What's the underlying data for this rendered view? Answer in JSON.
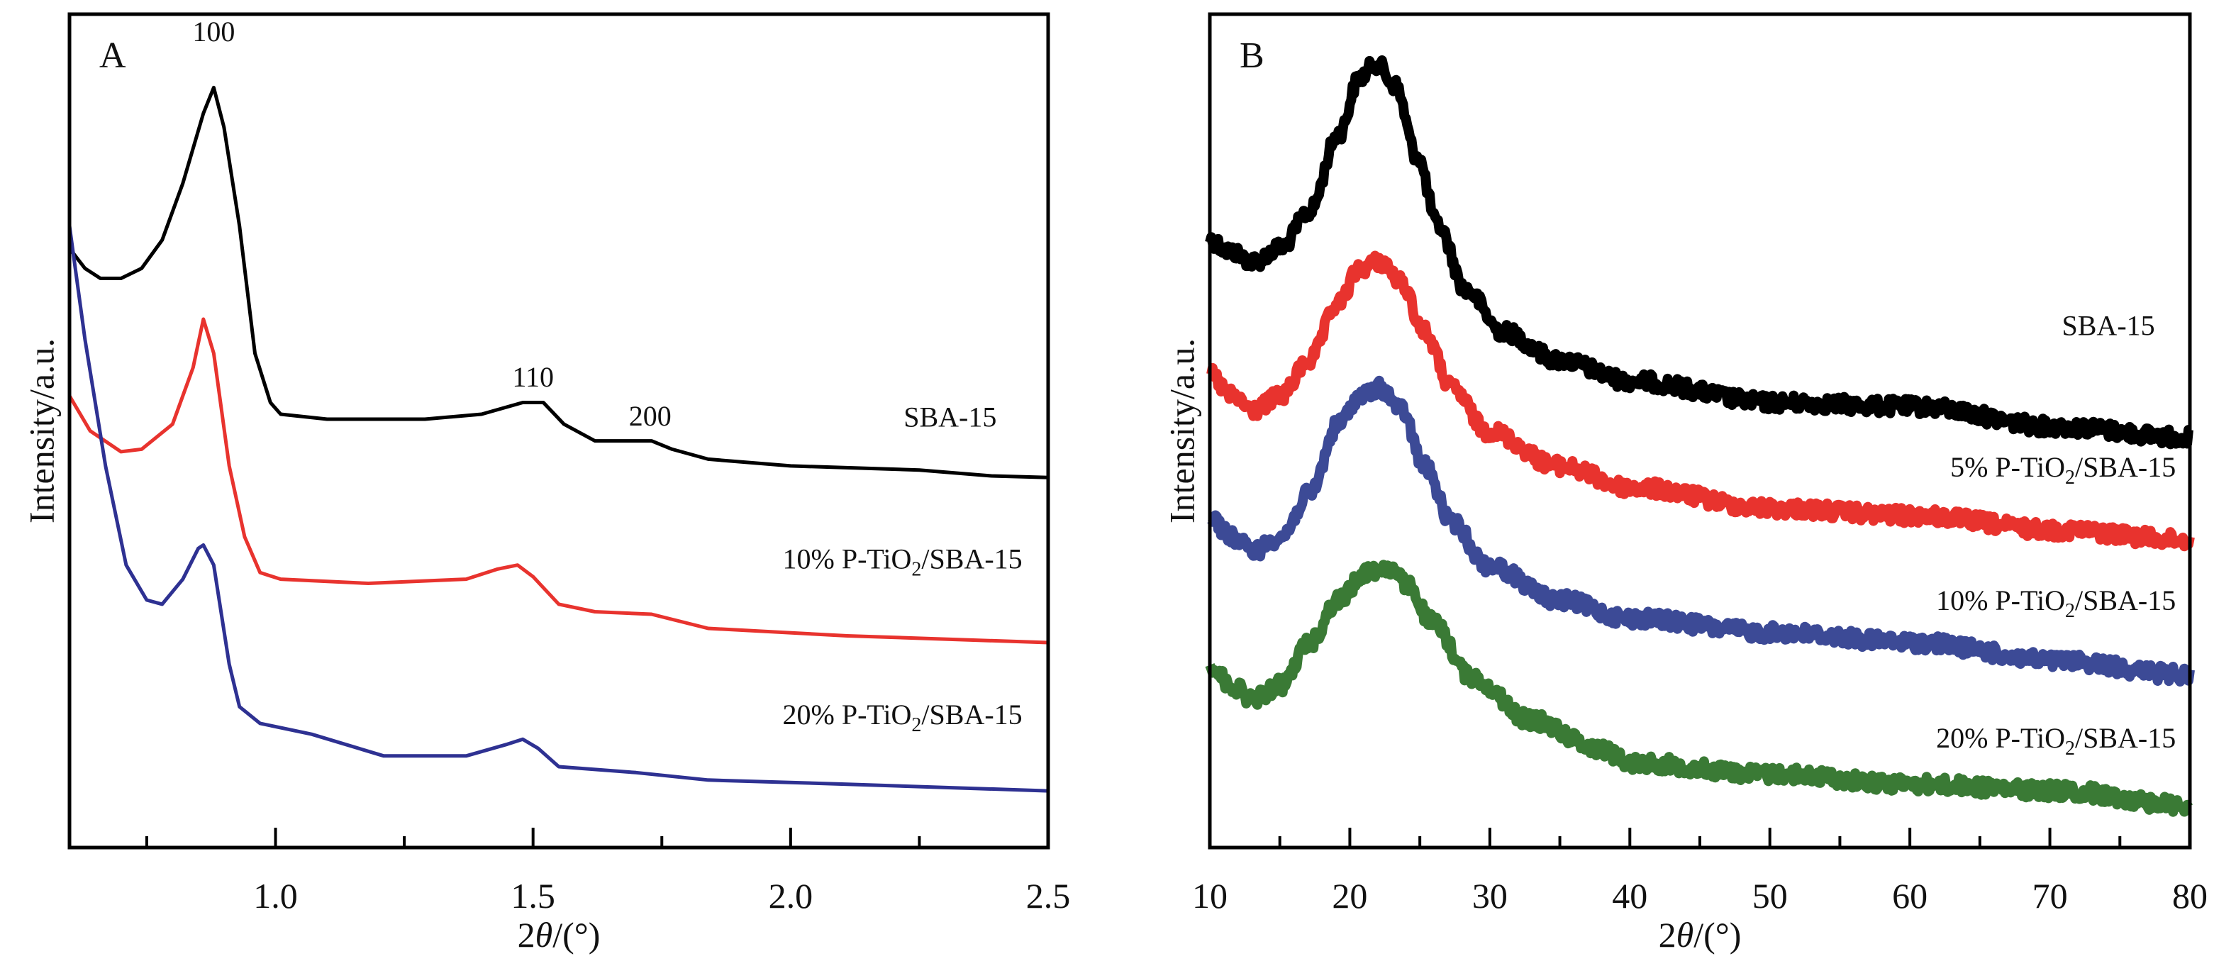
{
  "chart_data": [
    {
      "type": "line",
      "panel": "A",
      "panel_label": "A",
      "title": "",
      "xlabel": "2θ/(°)",
      "xlabel_parts": {
        "prefix": "2",
        "theta": "θ",
        "suffix": "/(°)"
      },
      "ylabel": "Intensity/a.u.",
      "xlim": [
        0.6,
        2.5
      ],
      "ylim": [
        0,
        100
      ],
      "xticks_major": [
        1.0,
        1.5,
        2.0,
        2.5
      ],
      "xtick_labels": [
        "1.0",
        "1.5",
        "2.0",
        "2.5"
      ],
      "xticks_minor": [
        0.75,
        1.25,
        1.75,
        2.25
      ],
      "grid": false,
      "legend": "inline labels at right end of each curve",
      "peak_annotations": [
        {
          "text": "100",
          "x": 0.88
        },
        {
          "text": "110",
          "x": 1.5
        },
        {
          "text": "200",
          "x": 1.73
        }
      ],
      "series": [
        {
          "name": "SBA-15",
          "label_main": "SBA-15",
          "label_sub": "",
          "label_tail": "",
          "color": "#000000",
          "x": [
            0.6,
            0.63,
            0.66,
            0.7,
            0.74,
            0.78,
            0.82,
            0.86,
            0.88,
            0.9,
            0.93,
            0.96,
            0.99,
            1.01,
            1.1,
            1.29,
            1.4,
            1.48,
            1.52,
            1.56,
            1.62,
            1.67,
            1.73,
            1.77,
            1.84,
            2.0,
            2.25,
            2.39,
            2.5
          ],
          "y": [
            71.9,
            69.5,
            68.3,
            68.3,
            69.5,
            72.9,
            79.7,
            88.1,
            91.2,
            86.4,
            74.6,
            59.3,
            53.4,
            52.0,
            51.4,
            51.4,
            52.0,
            53.4,
            53.4,
            50.8,
            48.8,
            48.8,
            48.8,
            47.8,
            46.6,
            45.8,
            45.3,
            44.6,
            44.4
          ]
        },
        {
          "name": "10% P-TiO2/SBA-15",
          "label_main": "10% P-TiO",
          "label_sub": "2",
          "label_tail": "/SBA-15",
          "color": "#e8332e",
          "x": [
            0.6,
            0.64,
            0.7,
            0.74,
            0.8,
            0.84,
            0.86,
            0.88,
            0.91,
            0.94,
            0.97,
            1.01,
            1.18,
            1.37,
            1.43,
            1.47,
            1.5,
            1.55,
            1.62,
            1.73,
            1.84,
            2.11,
            2.5
          ],
          "y": [
            54.2,
            50.0,
            47.5,
            47.8,
            50.8,
            57.6,
            63.4,
            59.3,
            45.8,
            37.3,
            33.0,
            32.2,
            31.7,
            32.2,
            33.4,
            33.9,
            32.5,
            29.2,
            28.3,
            28.0,
            26.3,
            25.4,
            24.6
          ]
        },
        {
          "name": "20% P-TiO2/SBA-15",
          "label_main": "20% P-TiO",
          "label_sub": "2",
          "label_tail": "/SBA-15",
          "color": "#2e3192",
          "x": [
            0.6,
            0.63,
            0.67,
            0.71,
            0.75,
            0.78,
            0.82,
            0.85,
            0.86,
            0.88,
            0.91,
            0.93,
            0.97,
            1.07,
            1.21,
            1.37,
            1.45,
            1.48,
            1.51,
            1.55,
            1.7,
            1.84,
            2.11,
            2.5
          ],
          "y": [
            74.6,
            61.0,
            45.8,
            33.9,
            29.7,
            29.2,
            32.2,
            35.9,
            36.3,
            33.9,
            22.0,
            16.9,
            14.9,
            13.6,
            11.0,
            11.0,
            12.4,
            13.0,
            11.9,
            9.7,
            9.0,
            8.1,
            7.6,
            6.8
          ]
        }
      ]
    },
    {
      "type": "line",
      "panel": "B",
      "panel_label": "B",
      "title": "",
      "xlabel": "2θ/(°)",
      "xlabel_parts": {
        "prefix": "2",
        "theta": "θ",
        "suffix": "/(°)"
      },
      "ylabel": "Intensity/a.u.",
      "xlim": [
        10,
        80
      ],
      "ylim": [
        0,
        100
      ],
      "xticks_major": [
        10,
        20,
        30,
        40,
        50,
        60,
        70,
        80
      ],
      "xtick_labels": [
        "10",
        "20",
        "30",
        "40",
        "50",
        "60",
        "70",
        "80"
      ],
      "xticks_minor": [
        15,
        25,
        35,
        45,
        55,
        65,
        75
      ],
      "grid": false,
      "legend": "inline labels above right end of each curve",
      "series": [
        {
          "name": "SBA-15",
          "label_main": "SBA-15",
          "label_sub": "",
          "label_tail": "",
          "color": "#000000",
          "x": [
            10,
            11.5,
            13.1,
            15.1,
            17.1,
            19.2,
            20.7,
            21.9,
            23.2,
            24.8,
            26.3,
            28.3,
            30.9,
            34.9,
            40,
            50.2,
            60.4,
            70.5,
            80
          ],
          "y": [
            72.9,
            71.5,
            70.3,
            72.0,
            76.3,
            85.6,
            92.4,
            94.1,
            91.5,
            83.0,
            74.6,
            66.9,
            61.9,
            58.5,
            56.0,
            53.4,
            52.9,
            50.5,
            49.2
          ]
        },
        {
          "name": "5% P-TiO2/SBA-15",
          "label_main": "5% P-TiO",
          "label_sub": "2",
          "label_tail": "/SBA-15",
          "color": "#e8332e",
          "x": [
            10,
            11.5,
            13.1,
            15.1,
            17.1,
            19.2,
            20.7,
            22.2,
            23.7,
            25.3,
            27.3,
            29.8,
            34.9,
            40,
            50.2,
            60.4,
            70.5,
            80
          ],
          "y": [
            56.8,
            54.2,
            52.5,
            54.2,
            58.5,
            65.3,
            69.5,
            70.3,
            67.8,
            61.9,
            55.1,
            50.0,
            45.8,
            43.2,
            40.7,
            39.8,
            38.1,
            36.9
          ]
        },
        {
          "name": "10% P-TiO2/SBA-15",
          "label_main": "10% P-TiO",
          "label_sub": "2",
          "label_tail": "/SBA-15",
          "color": "#3c4a96",
          "x": [
            10,
            11.5,
            13.1,
            15.1,
            17.1,
            19.2,
            20.7,
            22.2,
            23.7,
            25.3,
            27.3,
            29.8,
            34.9,
            40,
            50.2,
            60.4,
            70.5,
            80
          ],
          "y": [
            39.8,
            37.3,
            35.6,
            37.3,
            42.4,
            50.8,
            54.2,
            55.1,
            52.5,
            45.8,
            39.0,
            33.9,
            29.7,
            27.5,
            25.8,
            24.6,
            22.4,
            20.7
          ]
        },
        {
          "name": "20% P-TiO2/SBA-15",
          "label_main": "20% P-TiO",
          "label_sub": "2",
          "label_tail": "/SBA-15",
          "color": "#3a7a35",
          "x": [
            10,
            11.5,
            13.1,
            15.1,
            17.1,
            19.2,
            21.2,
            22.7,
            24.2,
            25.8,
            28.8,
            32.9,
            37.9,
            40,
            50.2,
            60.4,
            70.5,
            80
          ],
          "y": [
            22.0,
            19.5,
            17.8,
            19.5,
            24.6,
            29.7,
            33.1,
            33.6,
            31.4,
            27.1,
            20.3,
            15.3,
            11.9,
            10.2,
            8.8,
            7.6,
            6.8,
            5.1
          ]
        }
      ]
    }
  ]
}
